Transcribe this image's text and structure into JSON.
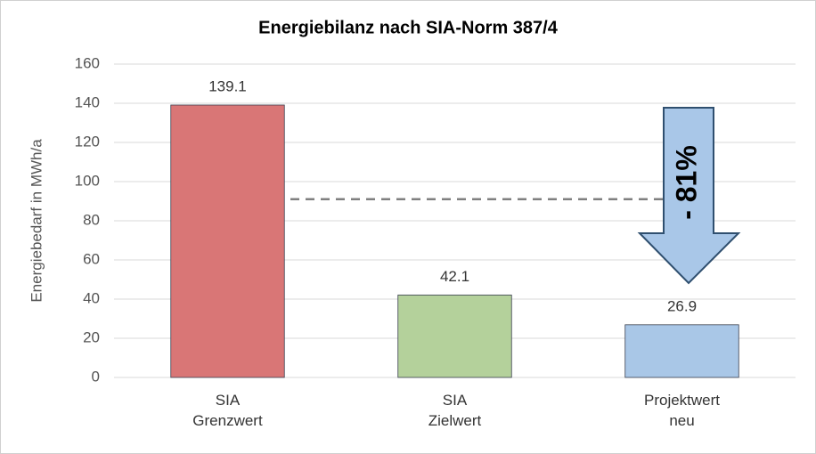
{
  "chart_data": {
    "type": "bar",
    "title": "Energiebilanz nach SIA-Norm 387/4",
    "y_label": "Energiebedarf in MWh/a",
    "categories": [
      [
        "SIA",
        "Grenzwert"
      ],
      [
        "SIA",
        "Zielwert"
      ],
      [
        "Projektwert",
        "neu"
      ]
    ],
    "values": [
      139.1,
      42.1,
      26.9
    ],
    "value_labels": [
      "139.1",
      "42.1",
      "26.9"
    ],
    "colors": [
      "#d97676",
      "#b4d19b",
      "#a9c7e7"
    ],
    "ylim": [
      0,
      160
    ],
    "yticks": [
      0,
      20,
      40,
      60,
      80,
      100,
      120,
      140,
      160
    ],
    "grid": true,
    "reference_line": 91,
    "arrow_label": "- 81%"
  }
}
